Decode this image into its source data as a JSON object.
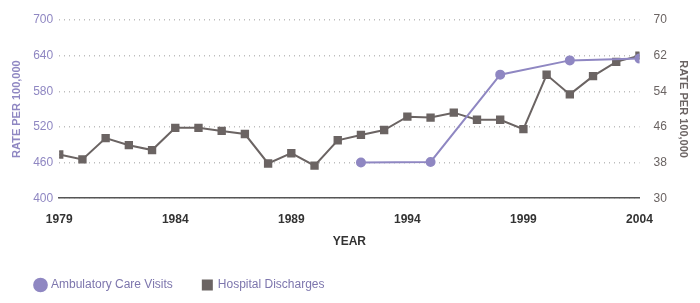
{
  "chart_data": {
    "type": "line",
    "x_label": "YEAR",
    "y_label": "RATE PER 100,000",
    "y2_label": "RATE PER 100,000",
    "xlim": [
      1979,
      2004
    ],
    "xticks": [
      1979,
      1984,
      1989,
      1994,
      1999,
      2004
    ],
    "ylim": [
      400,
      700
    ],
    "yticks": [
      400,
      460,
      520,
      580,
      640,
      700
    ],
    "y2lim": [
      30,
      70
    ],
    "y2ticks": [
      30,
      38,
      46,
      54,
      62,
      70
    ],
    "grid": true,
    "legend": "bottom",
    "series": [
      {
        "name": "Ambulatory Care Visits",
        "color": "#8f87c2",
        "marker": "circle",
        "axis": "y",
        "x": [
          1992,
          1995,
          1998,
          2001,
          2004
        ],
        "values": [
          460,
          461,
          608,
          632,
          635
        ]
      },
      {
        "name": "Hospital Discharges",
        "color": "#6b6463",
        "marker": "square",
        "axis": "y2",
        "x": [
          1979,
          1980,
          1981,
          1982,
          1983,
          1984,
          1985,
          1986,
          1987,
          1988,
          1989,
          1990,
          1991,
          1992,
          1993,
          1994,
          1995,
          1996,
          1997,
          1998,
          1999,
          2000,
          2001,
          2002,
          2003,
          2004
        ],
        "values": [
          39.8,
          38.7,
          43.5,
          41.9,
          40.8,
          45.8,
          45.8,
          45.1,
          44.4,
          37.8,
          40.1,
          37.3,
          43.0,
          44.2,
          45.3,
          48.3,
          48.1,
          49.2,
          47.6,
          47.6,
          45.5,
          57.7,
          53.3,
          57.4,
          60.6,
          62.0
        ]
      }
    ]
  }
}
